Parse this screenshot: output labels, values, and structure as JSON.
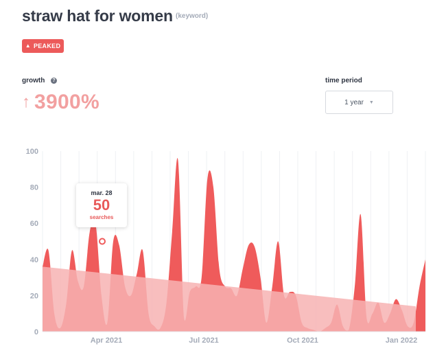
{
  "header": {
    "title": "straw hat for women",
    "tag": "(keyword)"
  },
  "badge": {
    "label": "PEAKED",
    "icon": "warning-icon",
    "color": "#ec5a5a"
  },
  "growth": {
    "label": "growth",
    "help_icon": "?",
    "arrow": "↑",
    "value": "3900%",
    "color": "#f2a0a0"
  },
  "time_period": {
    "label": "time period",
    "selected": "1 year"
  },
  "tooltip": {
    "date": "mar. 28",
    "value": "50",
    "unit": "searches"
  },
  "chart_data": {
    "type": "area",
    "y_ticks": [
      "0",
      "20",
      "40",
      "60",
      "80",
      "100"
    ],
    "ylim": [
      0,
      100
    ],
    "x_labels": [
      "Apr 2021",
      "Jul 2021",
      "Oct 2021",
      "Jan 2022"
    ],
    "grid": true,
    "series": [
      {
        "values": [
          36,
          45,
          10,
          2,
          15,
          45,
          28,
          25,
          55,
          60,
          20,
          5,
          50,
          48,
          25,
          20,
          32,
          45,
          10,
          3,
          2,
          15,
          55,
          95,
          8,
          22,
          25,
          30,
          85,
          80,
          35,
          25,
          24,
          20,
          35,
          48,
          47,
          30,
          5,
          25,
          50,
          20,
          22,
          20,
          5,
          2,
          1,
          0,
          2,
          5,
          15,
          3,
          1,
          25,
          65,
          8,
          10,
          16,
          5,
          10,
          18,
          12,
          3,
          5,
          25,
          40
        ],
        "color": "#ef5b5b"
      },
      {
        "values": [
          36,
          14
        ],
        "color": "#f7b3b3"
      }
    ],
    "highlight_point": {
      "x": "mar. 28",
      "y": 50
    },
    "colors": {
      "bars": "#ef5b5b",
      "trend": "#f7b3b3",
      "axis_text": "#a4abb8",
      "grid": "#eef0f3"
    }
  }
}
